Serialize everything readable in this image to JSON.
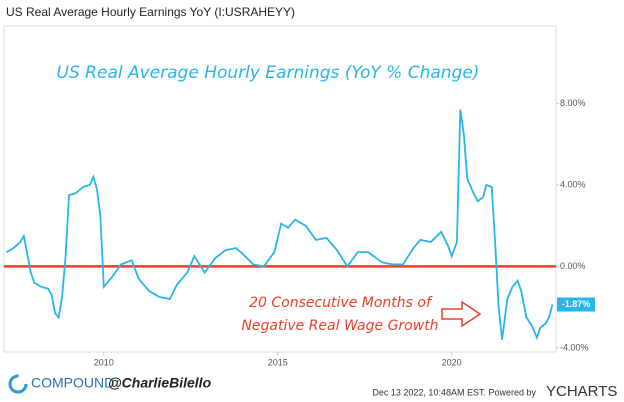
{
  "chart_data": {
    "type": "line",
    "header": "US Real Average Hourly Earnings YoY (I:USRAHEYY)",
    "title": "US Real Average Hourly Earnings (YoY % Change)",
    "annotations": [
      "20 Consecutive Months of",
      "Negative Real Wage Growth"
    ],
    "footer": {
      "brand": "COMPOUND",
      "handle": "@CharlieBilello",
      "timestamp": "Dec 13 2022, 10:48AM EST.  Powered by",
      "provider": "YCHARTS"
    },
    "last_value_label": "-1.87%",
    "xlim": [
      2007.13,
      2023.0
    ],
    "xticks": [
      2010,
      2015,
      2020
    ],
    "ylim": [
      -4.2,
      11.8
    ],
    "yticks": [
      {
        "value": -4,
        "label": "-4.00%"
      },
      {
        "value": 0,
        "label": "0.00%"
      },
      {
        "value": 4,
        "label": "4.00%"
      },
      {
        "value": 8,
        "label": "8.00%"
      }
    ],
    "grid": false,
    "reference_line": {
      "value": 0,
      "color": "#e8402a"
    },
    "series": [
      {
        "name": "US Real Average Hourly Earnings YoY",
        "color": "#29b6e6",
        "x": [
          2007.2,
          2007.4,
          2007.6,
          2007.7,
          2007.9,
          2008.0,
          2008.2,
          2008.4,
          2008.5,
          2008.6,
          2008.7,
          2008.8,
          2008.9,
          2009.0,
          2009.2,
          2009.4,
          2009.6,
          2009.7,
          2009.8,
          2009.9,
          2010.0,
          2010.2,
          2010.5,
          2010.8,
          2011.0,
          2011.3,
          2011.6,
          2011.9,
          2012.1,
          2012.4,
          2012.6,
          2012.9,
          2013.2,
          2013.5,
          2013.8,
          2014.0,
          2014.3,
          2014.6,
          2014.9,
          2015.1,
          2015.3,
          2015.5,
          2015.8,
          2016.1,
          2016.4,
          2016.7,
          2017.0,
          2017.3,
          2017.6,
          2018.0,
          2018.3,
          2018.6,
          2018.9,
          2019.1,
          2019.4,
          2019.7,
          2019.9,
          2020.0,
          2020.15,
          2020.25,
          2020.35,
          2020.45,
          2020.6,
          2020.75,
          2020.9,
          2021.0,
          2021.15,
          2021.25,
          2021.35,
          2021.45,
          2021.6,
          2021.75,
          2021.9,
          2022.0,
          2022.15,
          2022.3,
          2022.45,
          2022.55,
          2022.7,
          2022.8,
          2022.9
        ],
        "values": [
          0.7,
          0.9,
          1.2,
          1.5,
          -0.3,
          -0.8,
          -1.0,
          -1.1,
          -1.4,
          -2.3,
          -2.5,
          -1.5,
          0.5,
          3.5,
          3.6,
          3.9,
          4.0,
          4.4,
          3.8,
          2.5,
          -1.0,
          -0.6,
          0.1,
          0.3,
          -0.6,
          -1.2,
          -1.5,
          -1.6,
          -0.9,
          -0.3,
          0.5,
          -0.3,
          0.4,
          0.8,
          0.9,
          0.6,
          0.1,
          0.0,
          0.7,
          2.1,
          1.9,
          2.3,
          2.0,
          1.3,
          1.4,
          0.8,
          0.0,
          0.7,
          0.7,
          0.2,
          0.1,
          0.1,
          0.9,
          1.3,
          1.2,
          1.7,
          1.0,
          0.5,
          1.2,
          7.7,
          6.5,
          4.3,
          3.7,
          3.2,
          3.4,
          4.0,
          3.9,
          1.2,
          -2.0,
          -3.6,
          -1.6,
          -1.0,
          -0.7,
          -1.2,
          -2.5,
          -2.9,
          -3.5,
          -3.0,
          -2.8,
          -2.5,
          -1.87
        ]
      }
    ]
  }
}
